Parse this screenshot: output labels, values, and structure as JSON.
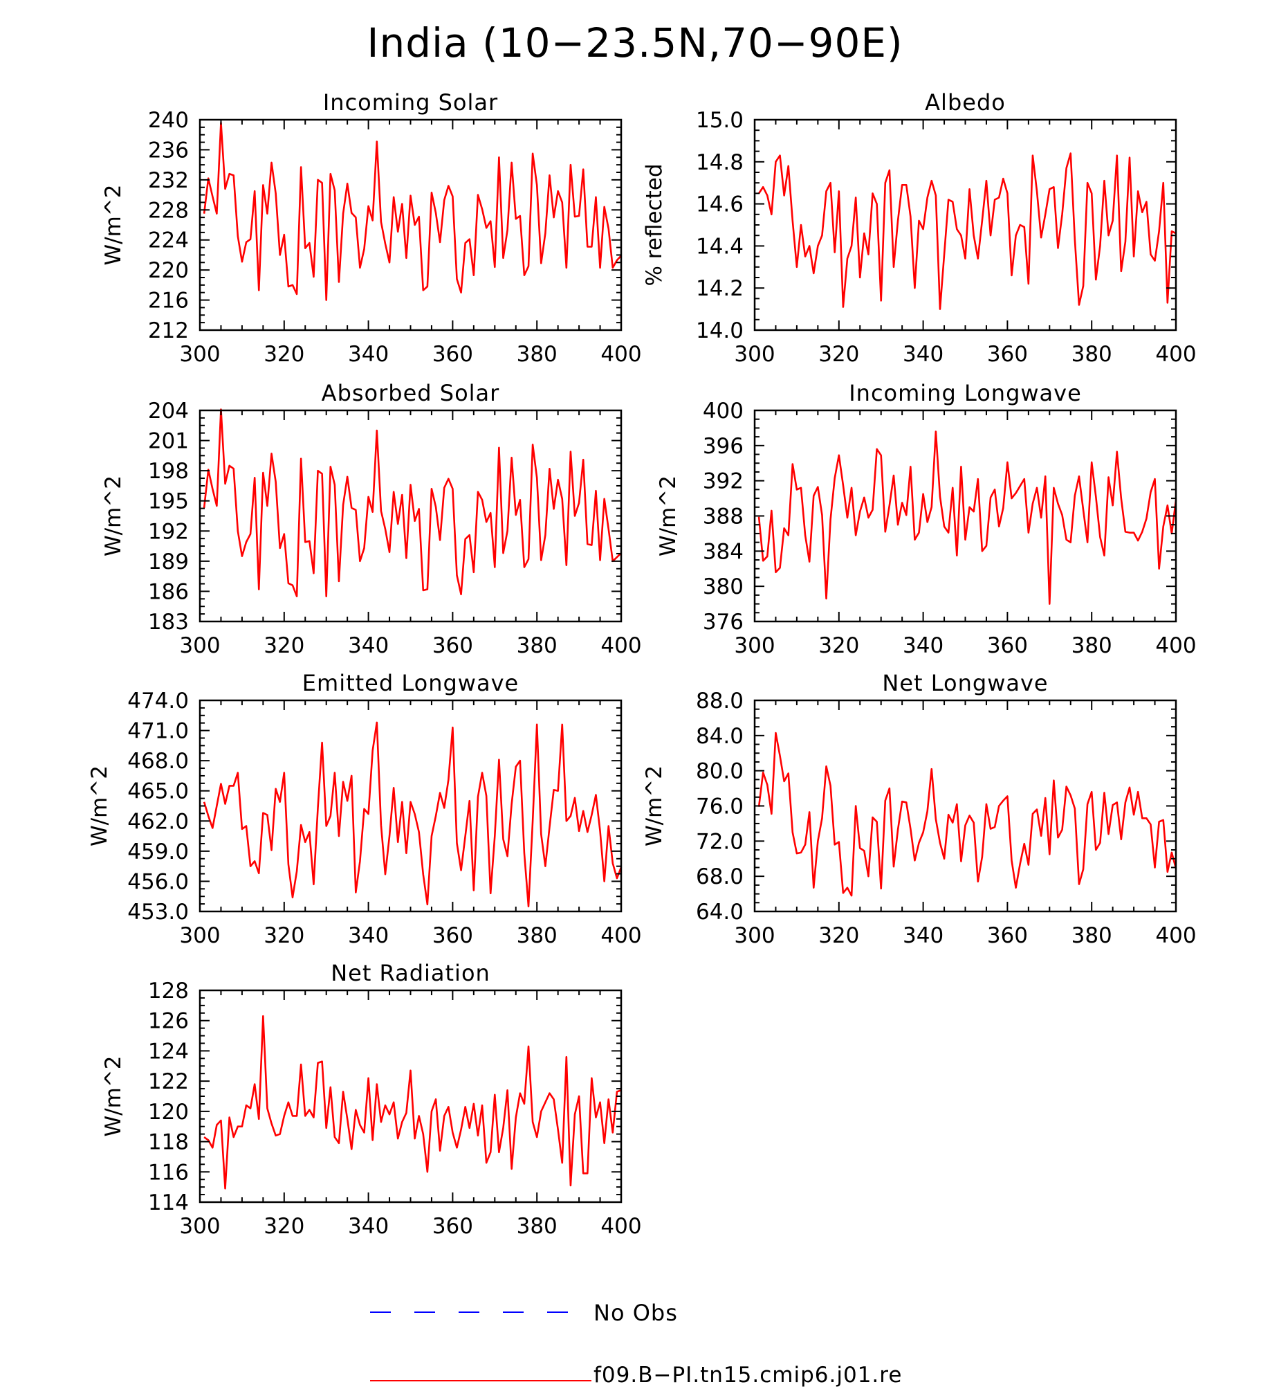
{
  "figure": {
    "title": "India (10−23.5N,70−90E)"
  },
  "colors": {
    "model_line": "#ff0000",
    "obs_line": "#0000ff",
    "axes": "#000000"
  },
  "legend": [
    {
      "label": "No Obs",
      "style": "dashed",
      "color": "#0000ff"
    },
    {
      "label": "f09.B−PI.tn15.cmip6.j01.re",
      "style": "solid",
      "color": "#ff0000"
    }
  ],
  "chart_data": [
    {
      "type": "line",
      "title": "Incoming Solar",
      "ylabel": "W/m^2",
      "xlim": [
        300,
        400
      ],
      "ylim": [
        212,
        240
      ],
      "xticks": [
        300,
        320,
        340,
        360,
        380,
        400
      ],
      "xtick_labels": [
        "300",
        "320",
        "340",
        "360",
        "380",
        "400"
      ],
      "yticks": [
        212,
        216,
        220,
        224,
        228,
        232,
        236,
        240
      ],
      "ytick_labels": [
        "212",
        "216",
        "220",
        "224",
        "228",
        "232",
        "236",
        "240"
      ],
      "series": [
        {
          "name": "f09.B−PI.tn15.cmip6.j01.re",
          "x_start": 301,
          "x_step": 1,
          "values": [
            227.5,
            232.2,
            229.8,
            227.5,
            239.6,
            230.8,
            232.8,
            232.6,
            224.5,
            221.1,
            223.7,
            224.1,
            230.5,
            217.3,
            231.3,
            227.5,
            234.3,
            230.2,
            222.0,
            224.7,
            217.8,
            218.0,
            216.8,
            233.7,
            222.9,
            223.6,
            219.1,
            232.0,
            231.6,
            216.0,
            232.8,
            230.6,
            218.4,
            227.5,
            231.5,
            227.6,
            227.0,
            220.3,
            222.8,
            228.5,
            226.6,
            237.1,
            226.4,
            223.5,
            221.0,
            229.7,
            225.1,
            228.8,
            221.6,
            229.9,
            226.0,
            227.1,
            217.3,
            217.8,
            230.3,
            227.6,
            223.7,
            229.3,
            231.2,
            229.8,
            218.8,
            217.0,
            223.6,
            224.1,
            219.3,
            230.0,
            228.1,
            225.6,
            226.5,
            220.4,
            235.0,
            221.6,
            225.3,
            234.3,
            226.8,
            227.2,
            219.3,
            220.5,
            235.5,
            231.3,
            220.9,
            224.9,
            232.6,
            227.0,
            230.5,
            229.0,
            220.3,
            234.0,
            227.1,
            227.2,
            233.4,
            223.1,
            223.1,
            229.7,
            220.3,
            228.4,
            225.5,
            220.3,
            221.3,
            221.9
          ]
        }
      ]
    },
    {
      "type": "line",
      "title": "Albedo",
      "ylabel": "% reflected",
      "xlim": [
        300,
        400
      ],
      "ylim": [
        14.0,
        15.0
      ],
      "xticks": [
        300,
        320,
        340,
        360,
        380,
        400
      ],
      "xtick_labels": [
        "300",
        "320",
        "340",
        "360",
        "380",
        "400"
      ],
      "yticks": [
        14.0,
        14.2,
        14.4,
        14.6,
        14.8,
        15.0
      ],
      "ytick_labels": [
        "14.0",
        "14.2",
        "14.4",
        "14.6",
        "14.8",
        "15.0"
      ],
      "series": [
        {
          "name": "f09.B−PI.tn15.cmip6.j01.re",
          "x_start": 301,
          "x_step": 1,
          "values": [
            14.65,
            14.68,
            14.64,
            14.55,
            14.8,
            14.83,
            14.64,
            14.78,
            14.52,
            14.3,
            14.5,
            14.35,
            14.4,
            14.27,
            14.4,
            14.45,
            14.66,
            14.7,
            14.37,
            14.66,
            14.11,
            14.34,
            14.4,
            14.63,
            14.25,
            14.46,
            14.36,
            14.65,
            14.6,
            14.14,
            14.7,
            14.76,
            14.3,
            14.52,
            14.69,
            14.69,
            14.54,
            14.2,
            14.52,
            14.48,
            14.63,
            14.71,
            14.64,
            14.1,
            14.36,
            14.62,
            14.61,
            14.48,
            14.45,
            14.34,
            14.67,
            14.45,
            14.34,
            14.52,
            14.71,
            14.45,
            14.62,
            14.63,
            14.72,
            14.65,
            14.26,
            14.45,
            14.5,
            14.49,
            14.22,
            14.83,
            14.66,
            14.44,
            14.55,
            14.67,
            14.68,
            14.39,
            14.55,
            14.77,
            14.84,
            14.43,
            14.12,
            14.21,
            14.7,
            14.65,
            14.24,
            14.4,
            14.71,
            14.45,
            14.52,
            14.83,
            14.28,
            14.42,
            14.82,
            14.35,
            14.66,
            14.56,
            14.61,
            14.36,
            14.33,
            14.47,
            14.7,
            14.13,
            14.47,
            14.46
          ]
        }
      ]
    },
    {
      "type": "line",
      "title": "Absorbed Solar",
      "ylabel": "W/m^2",
      "xlim": [
        300,
        400
      ],
      "ylim": [
        183,
        204
      ],
      "xticks": [
        300,
        320,
        340,
        360,
        380,
        400
      ],
      "xtick_labels": [
        "300",
        "320",
        "340",
        "360",
        "380",
        "400"
      ],
      "yticks": [
        183,
        186,
        189,
        192,
        195,
        198,
        201,
        204
      ],
      "ytick_labels": [
        "183",
        "186",
        "189",
        "192",
        "195",
        "198",
        "201",
        "204"
      ],
      "series": [
        {
          "name": "f09.B−PI.tn15.cmip6.j01.re",
          "x_start": 301,
          "x_step": 1,
          "values": [
            194.3,
            198.1,
            196.2,
            194.5,
            204.1,
            196.7,
            198.5,
            198.2,
            192.0,
            189.5,
            190.9,
            191.7,
            197.3,
            186.2,
            197.8,
            194.5,
            199.7,
            196.9,
            190.3,
            191.7,
            186.8,
            186.6,
            185.5,
            199.2,
            190.9,
            191.0,
            187.8,
            198.0,
            197.7,
            185.5,
            198.4,
            196.6,
            187.0,
            194.6,
            197.4,
            194.3,
            194.1,
            189.0,
            190.3,
            195.4,
            193.9,
            202.0,
            194.0,
            192.2,
            189.9,
            195.9,
            192.7,
            195.6,
            189.3,
            196.6,
            193.0,
            194.2,
            186.1,
            186.2,
            196.2,
            194.4,
            191.1,
            196.3,
            197.2,
            196.2,
            187.6,
            185.7,
            191.2,
            191.6,
            187.9,
            195.9,
            195.1,
            192.9,
            193.8,
            188.4,
            200.3,
            189.8,
            192.0,
            199.3,
            193.6,
            195.1,
            188.4,
            189.2,
            200.6,
            197.3,
            189.1,
            191.6,
            198.2,
            194.2,
            197.1,
            195.2,
            188.6,
            199.9,
            193.5,
            194.8,
            199.1,
            190.7,
            190.6,
            196.0,
            189.1,
            195.2,
            192.2,
            189.0,
            189.4,
            189.8
          ]
        }
      ]
    },
    {
      "type": "line",
      "title": "Incoming Longwave",
      "ylabel": "W/m^2",
      "xlim": [
        300,
        400
      ],
      "ylim": [
        376,
        400
      ],
      "xticks": [
        300,
        320,
        340,
        360,
        380,
        400
      ],
      "xtick_labels": [
        "300",
        "320",
        "340",
        "360",
        "380",
        "400"
      ],
      "yticks": [
        376,
        380,
        384,
        388,
        392,
        396,
        400
      ],
      "ytick_labels": [
        "376",
        "380",
        "384",
        "388",
        "392",
        "396",
        "400"
      ],
      "series": [
        {
          "name": "f09.B−PI.tn15.cmip6.j01.re",
          "x_start": 301,
          "x_step": 1,
          "values": [
            387.9,
            382.9,
            383.4,
            388.6,
            381.6,
            382.1,
            386.6,
            385.8,
            393.9,
            391.0,
            391.2,
            385.8,
            382.8,
            390.3,
            391.3,
            388.1,
            378.6,
            387.6,
            392.3,
            394.9,
            391.5,
            387.8,
            391.2,
            385.8,
            388.5,
            390.1,
            387.8,
            388.7,
            395.6,
            394.9,
            386.2,
            389.2,
            392.6,
            387.0,
            389.5,
            388.1,
            393.6,
            385.3,
            386.1,
            390.5,
            387.3,
            389.0,
            397.6,
            390.2,
            386.8,
            386.1,
            391.2,
            383.5,
            393.6,
            385.3,
            389.0,
            388.5,
            392.2,
            384.0,
            384.6,
            390.1,
            391.0,
            386.8,
            388.9,
            394.1,
            390.0,
            390.6,
            391.4,
            392.2,
            386.1,
            389.4,
            391.2,
            387.8,
            392.5,
            378.0,
            391.2,
            389.4,
            388.1,
            385.3,
            385.0,
            390.3,
            392.5,
            388.7,
            385.0,
            394.1,
            390.2,
            385.6,
            383.5,
            392.4,
            389.2,
            395.3,
            390.0,
            386.2,
            386.1,
            386.1,
            385.2,
            386.2,
            387.7,
            390.7,
            392.2,
            382.0,
            386.8,
            389.2,
            386.0,
            389.8
          ]
        }
      ]
    },
    {
      "type": "line",
      "title": "Emitted Longwave",
      "ylabel": "W/m^2",
      "xlim": [
        300,
        400
      ],
      "ylim": [
        453.0,
        474.0
      ],
      "xticks": [
        300,
        320,
        340,
        360,
        380,
        400
      ],
      "xtick_labels": [
        "300",
        "320",
        "340",
        "360",
        "380",
        "400"
      ],
      "yticks": [
        453.0,
        456.0,
        459.0,
        462.0,
        465.0,
        468.0,
        471.0,
        474.0
      ],
      "ytick_labels": [
        "453.0",
        "456.0",
        "459.0",
        "462.0",
        "465.0",
        "468.0",
        "471.0",
        "474.0"
      ],
      "series": [
        {
          "name": "f09.B−PI.tn15.cmip6.j01.re",
          "x_start": 301,
          "x_step": 1,
          "values": [
            463.9,
            462.5,
            461.3,
            463.5,
            465.7,
            463.7,
            465.5,
            465.5,
            466.8,
            461.2,
            461.5,
            457.5,
            458.0,
            456.8,
            462.8,
            462.6,
            459.1,
            465.2,
            463.9,
            466.8,
            457.7,
            454.4,
            457.0,
            461.6,
            459.9,
            460.9,
            455.7,
            463.3,
            469.8,
            461.5,
            462.5,
            466.8,
            460.5,
            465.9,
            464.0,
            466.5,
            454.9,
            458.0,
            463.2,
            462.7,
            469.0,
            471.8,
            461.6,
            456.7,
            460.5,
            465.3,
            459.9,
            463.9,
            458.8,
            463.9,
            462.7,
            460.9,
            456.7,
            453.7,
            460.5,
            462.5,
            464.8,
            463.3,
            466.1,
            471.3,
            459.8,
            457.1,
            460.5,
            464.0,
            455.1,
            464.4,
            466.8,
            464.5,
            454.8,
            460.5,
            468.1,
            460.2,
            458.5,
            463.7,
            467.4,
            468.0,
            458.8,
            453.5,
            462.0,
            471.6,
            460.7,
            457.5,
            461.4,
            465.1,
            465.0,
            471.6,
            462.0,
            462.5,
            464.3,
            461.0,
            463.0,
            460.9,
            462.6,
            464.6,
            461.0,
            456.0,
            461.5,
            457.8,
            456.3,
            457.4
          ]
        }
      ]
    },
    {
      "type": "line",
      "title": "Net Longwave",
      "ylabel": "W/m^2",
      "xlim": [
        300,
        400
      ],
      "ylim": [
        64.0,
        88.0
      ],
      "xticks": [
        300,
        320,
        340,
        360,
        380,
        400
      ],
      "xtick_labels": [
        "300",
        "320",
        "340",
        "360",
        "380",
        "400"
      ],
      "yticks": [
        64.0,
        68.0,
        72.0,
        76.0,
        80.0,
        84.0,
        88.0
      ],
      "ytick_labels": [
        "64.0",
        "68.0",
        "72.0",
        "76.0",
        "80.0",
        "84.0",
        "88.0"
      ],
      "series": [
        {
          "name": "f09.B−PI.tn15.cmip6.j01.re",
          "x_start": 301,
          "x_step": 1,
          "values": [
            75.9,
            79.8,
            78.4,
            75.1,
            84.3,
            81.7,
            78.8,
            79.7,
            73.0,
            70.6,
            70.7,
            71.6,
            75.3,
            66.7,
            72.0,
            74.6,
            80.5,
            78.3,
            71.6,
            71.9,
            66.1,
            66.7,
            65.8,
            76.0,
            71.2,
            70.9,
            68.0,
            74.7,
            74.2,
            66.6,
            76.6,
            78.0,
            69.1,
            73.3,
            76.5,
            76.4,
            73.4,
            69.8,
            71.8,
            73.0,
            75.4,
            80.2,
            74.5,
            71.8,
            70.0,
            75.0,
            74.1,
            76.2,
            69.7,
            73.8,
            74.9,
            74.1,
            67.4,
            70.2,
            76.2,
            73.4,
            73.6,
            76.0,
            76.6,
            77.1,
            69.8,
            66.7,
            69.4,
            71.7,
            69.3,
            75.1,
            75.6,
            72.6,
            76.9,
            70.5,
            78.9,
            72.4,
            73.3,
            78.2,
            77.2,
            75.7,
            67.1,
            68.8,
            76.2,
            77.6,
            71.0,
            71.8,
            77.5,
            72.8,
            76.1,
            76.4,
            72.2,
            76.4,
            78.1,
            75.0,
            77.6,
            74.6,
            74.6,
            73.9,
            69.0,
            74.2,
            74.4,
            68.5,
            70.7,
            68.9
          ]
        }
      ]
    },
    {
      "type": "line",
      "title": "Net Radiation",
      "ylabel": "W/m^2",
      "xlim": [
        300,
        400
      ],
      "ylim": [
        114,
        128
      ],
      "xticks": [
        300,
        320,
        340,
        360,
        380,
        400
      ],
      "xtick_labels": [
        "300",
        "320",
        "340",
        "360",
        "380",
        "400"
      ],
      "yticks": [
        114,
        116,
        118,
        120,
        122,
        124,
        126,
        128
      ],
      "ytick_labels": [
        "114",
        "116",
        "118",
        "120",
        "122",
        "124",
        "126",
        "128"
      ],
      "series": [
        {
          "name": "f09.B−PI.tn15.cmip6.j01.re",
          "x_start": 301,
          "x_step": 1,
          "values": [
            118.3,
            118.1,
            117.6,
            119.1,
            119.4,
            114.9,
            119.6,
            118.3,
            119.0,
            119.0,
            120.4,
            120.2,
            121.8,
            119.5,
            126.3,
            120.2,
            119.2,
            118.4,
            118.5,
            119.7,
            120.6,
            119.7,
            119.7,
            123.1,
            119.7,
            120.1,
            119.6,
            123.2,
            123.3,
            118.9,
            121.6,
            118.3,
            117.9,
            121.3,
            119.5,
            117.5,
            120.1,
            119.1,
            118.6,
            122.2,
            118.1,
            121.8,
            119.3,
            120.4,
            119.8,
            120.6,
            118.2,
            119.3,
            119.9,
            122.7,
            118.2,
            119.7,
            118.5,
            116.0,
            120.0,
            120.8,
            117.4,
            119.7,
            120.3,
            118.6,
            117.6,
            118.8,
            120.3,
            118.9,
            120.5,
            118.4,
            120.4,
            116.6,
            117.3,
            121.1,
            117.3,
            118.9,
            121.4,
            116.2,
            119.6,
            121.2,
            120.5,
            124.3,
            119.3,
            118.3,
            120.0,
            120.6,
            121.2,
            120.8,
            118.8,
            116.6,
            123.6,
            115.1,
            119.8,
            121.0,
            115.9,
            115.9,
            122.2,
            119.6,
            120.6,
            117.9,
            120.8,
            118.6,
            121.3,
            121.4
          ]
        }
      ]
    }
  ]
}
